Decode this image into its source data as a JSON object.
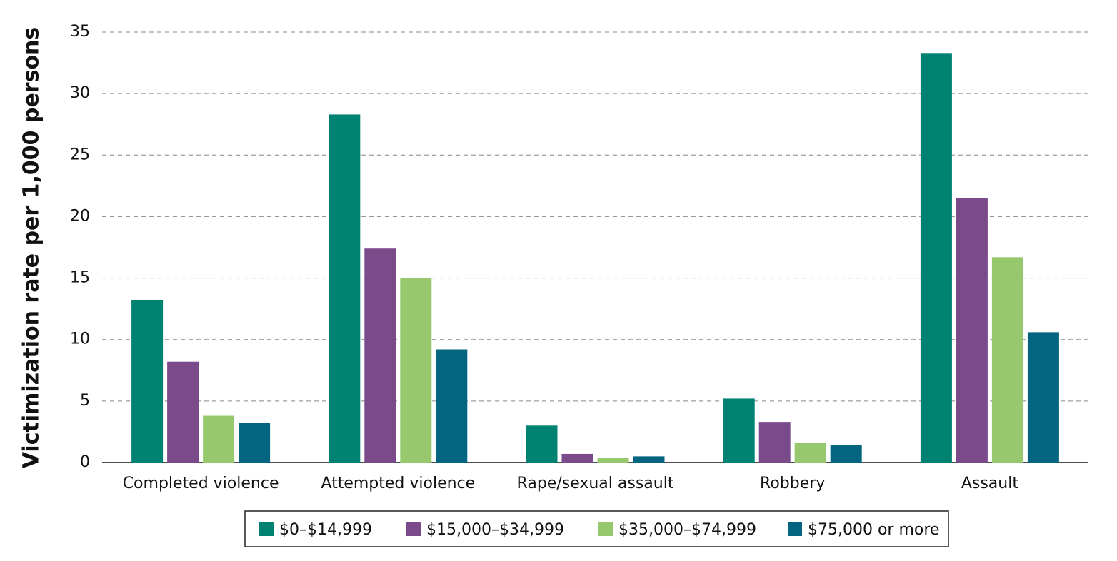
{
  "chart_data": {
    "type": "bar",
    "y_label": "Victimization rate per 1,000 persons",
    "categories": [
      "Completed violence",
      "Attempted violence",
      "Rape/sexual assault",
      "Robbery",
      "Assault"
    ],
    "series": [
      {
        "name": "$0–$14,999",
        "color": "#008272",
        "values": [
          13.2,
          28.3,
          3.0,
          5.2,
          33.3
        ]
      },
      {
        "name": "$15,000–$34,999",
        "color": "#7b4a8b",
        "values": [
          8.2,
          17.4,
          0.7,
          3.3,
          21.5
        ]
      },
      {
        "name": "$35,000–$74,999",
        "color": "#97c86e",
        "values": [
          3.8,
          15.0,
          0.4,
          1.6,
          16.7
        ]
      },
      {
        "name": "$75,000 or more",
        "color": "#03657f",
        "values": [
          3.2,
          9.2,
          0.5,
          1.4,
          10.6
        ]
      }
    ],
    "ylim": [
      0,
      35
    ],
    "yticks": [
      0,
      5,
      10,
      15,
      20,
      25,
      30,
      35
    ],
    "grid": true
  }
}
